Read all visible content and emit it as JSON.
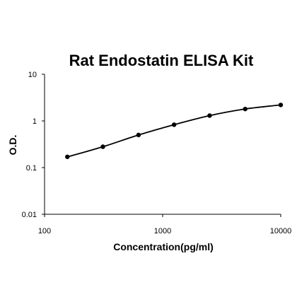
{
  "chart_data": {
    "type": "line",
    "title": "Rat Endostatin ELISA Kit",
    "xlabel": "Concentration(pg/ml)",
    "ylabel": "O.D.",
    "x_scale": "log",
    "y_scale": "log",
    "xlim": [
      100,
      10000
    ],
    "ylim": [
      0.01,
      10
    ],
    "x_ticks": [
      "100",
      "1000",
      "10000"
    ],
    "y_ticks": [
      "10",
      "1",
      "0.1",
      "0.01"
    ],
    "grid": false,
    "legend": "none",
    "series": [
      {
        "x": [
          156,
          312,
          625,
          1250,
          2500,
          5000,
          10000
        ],
        "y": [
          0.17,
          0.28,
          0.5,
          0.83,
          1.3,
          1.8,
          2.2
        ]
      }
    ],
    "colors": {
      "line": "#000000",
      "marker": "#000000",
      "axis": "#000000"
    }
  }
}
